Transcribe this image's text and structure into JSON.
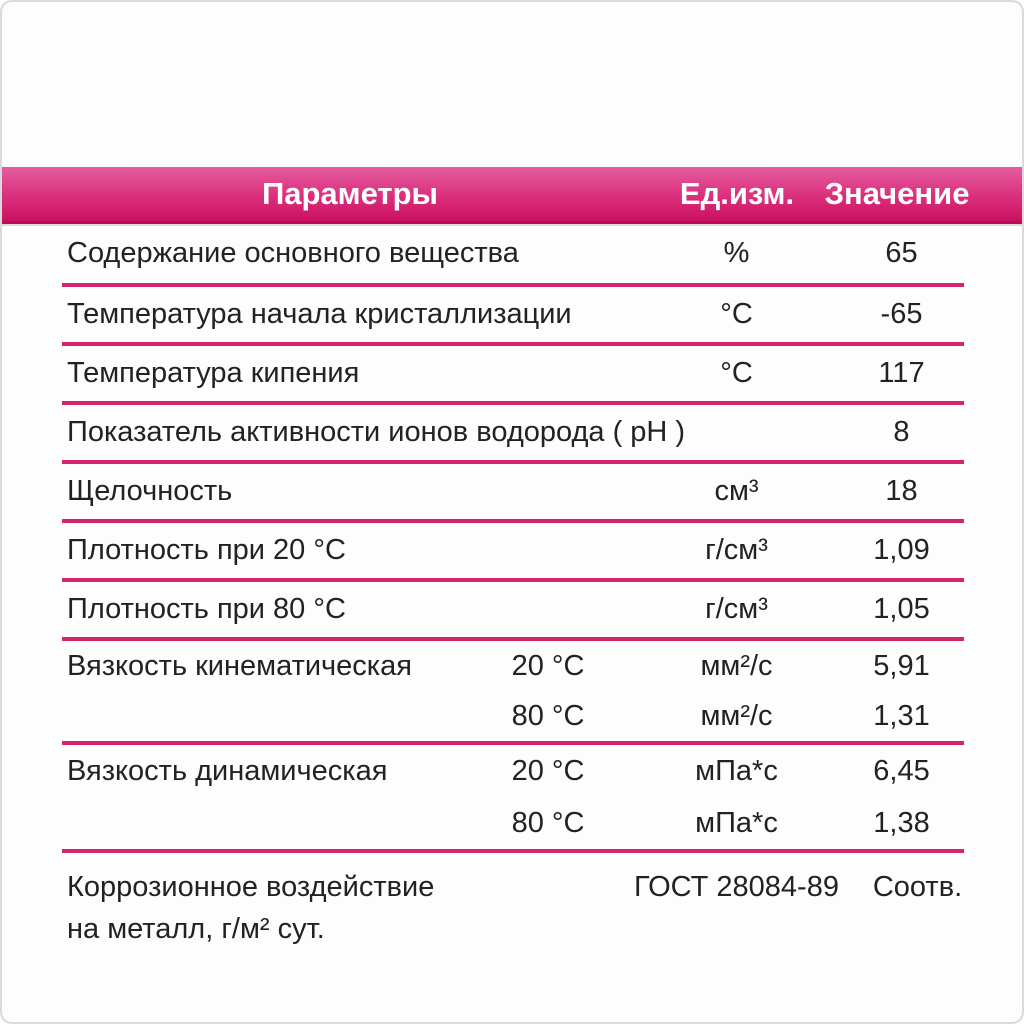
{
  "page": {
    "background": "#fdfdfe",
    "frame_border_color": "#d9d9de"
  },
  "colors": {
    "band_gradient_top": "#e45c9f",
    "band_gradient_bottom": "#cb1061",
    "band_bottom_edge": "#b70d58",
    "divider": "#d6256f",
    "header_text": "#ffffff",
    "body_text": "#222222"
  },
  "header": {
    "param": "Параметры",
    "unit": "Ед.изм.",
    "value": "Значение"
  },
  "rows": [
    {
      "param": "Содержание основного вещества",
      "unit": "%",
      "value": "65"
    },
    {
      "param": "Температура начала кристаллизации",
      "unit": "°С",
      "value": "-65"
    },
    {
      "param": "Температура кипения",
      "unit": "°С",
      "value": "117"
    },
    {
      "param": "Показатель активности ионов водорода ( pH )",
      "unit": "",
      "value": "8"
    },
    {
      "param": "Щелочность",
      "unit": "см³",
      "value": "18"
    },
    {
      "param": "Плотность при 20 °С",
      "unit": "г/см³",
      "value": "1,09"
    },
    {
      "param": "Плотность при 80 °С",
      "unit": "г/см³",
      "value": "1,05"
    }
  ],
  "groups": [
    {
      "param": "Вязкость кинематическая",
      "subrows": [
        {
          "temp": "20 °С",
          "unit": "мм²/с",
          "value": "5,91"
        },
        {
          "temp": "80 °С",
          "unit": "мм²/с",
          "value": "1,31"
        }
      ]
    },
    {
      "param": "Вязкость динамическая",
      "subrows": [
        {
          "temp": "20 °С",
          "unit": "мПа*с",
          "value": "6,45"
        },
        {
          "temp": "80 °С",
          "unit": "мПа*с",
          "value": "1,38"
        }
      ]
    }
  ],
  "footer_row": {
    "param_line1": "Коррозионное воздействие",
    "param_line2": "на металл, г/м² сут.",
    "unit": "ГОСТ 28084-89",
    "value": "Соотв."
  }
}
